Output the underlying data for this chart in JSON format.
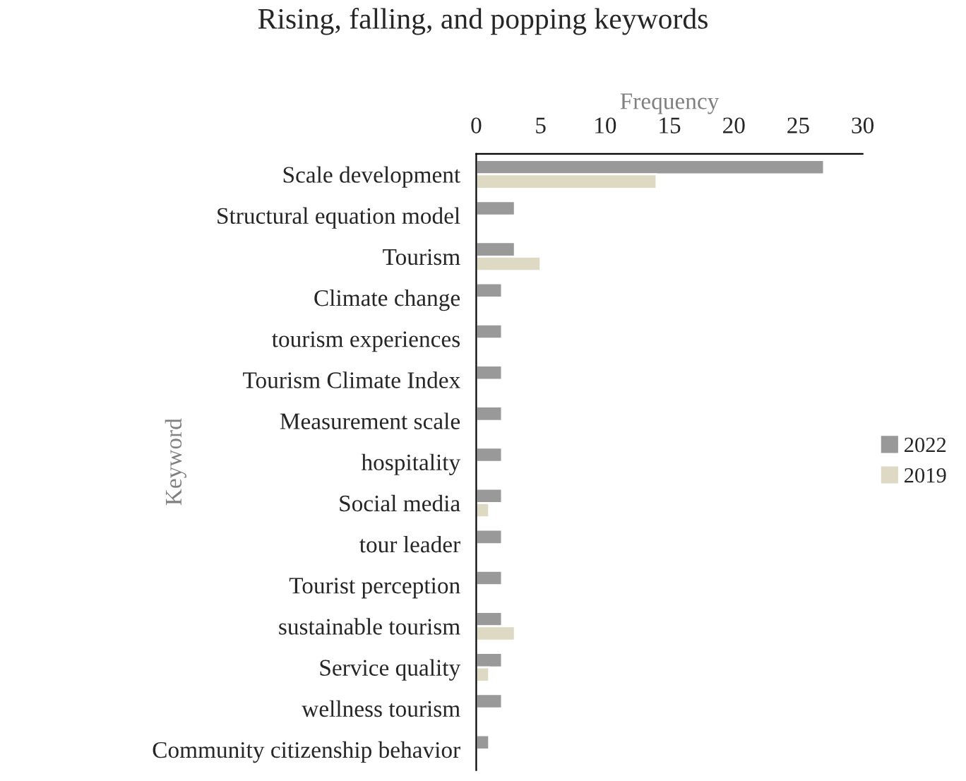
{
  "chart_data": {
    "type": "bar",
    "orientation": "horizontal",
    "title": "Rising, falling, and popping keywords",
    "xlabel": "Frequency",
    "ylabel": "Keyword",
    "categories": [
      "Scale development",
      "Structural equation model",
      "Tourism",
      "Climate change",
      "tourism experiences",
      "Tourism Climate Index",
      "Measurement scale",
      "hospitality",
      "Social media",
      "tour leader",
      "Tourist perception",
      "sustainable tourism",
      "Service quality",
      "wellness tourism",
      "Community citizenship behavior"
    ],
    "series": [
      {
        "name": "2022",
        "color": "#999999",
        "values": [
          27,
          3,
          3,
          2,
          2,
          2,
          2,
          2,
          2,
          2,
          2,
          2,
          2,
          2,
          1
        ]
      },
      {
        "name": "2019",
        "color": "#ddd9c3",
        "values": [
          14,
          null,
          5,
          null,
          null,
          null,
          null,
          null,
          1,
          null,
          null,
          3,
          1,
          null,
          null
        ]
      }
    ],
    "xlim": [
      0,
      30
    ],
    "xticks": [
      0,
      5,
      10,
      15,
      20,
      25,
      30
    ],
    "grid": false,
    "legend": "right"
  }
}
